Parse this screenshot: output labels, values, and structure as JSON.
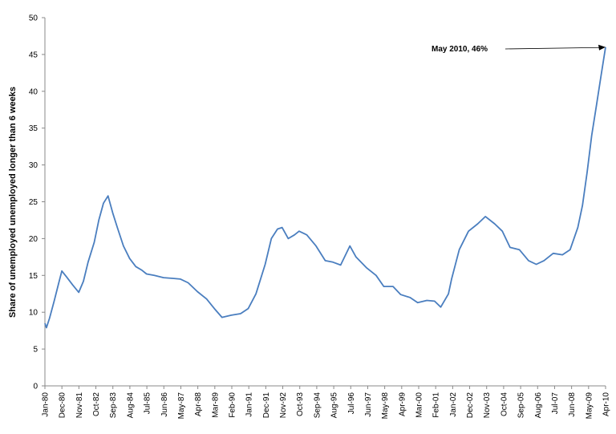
{
  "chart_data": {
    "type": "line",
    "ylabel": "Share of unemployed unemployed longer than 6 weeks",
    "xlabel": "",
    "ylim": [
      0,
      50
    ],
    "yticks": [
      "0",
      "5",
      "10",
      "15",
      "20",
      "25",
      "30",
      "35",
      "40",
      "45",
      "50"
    ],
    "xticks": [
      "Jan-80",
      "Dec-80",
      "Nov-81",
      "Oct-82",
      "Sep-83",
      "Aug-84",
      "Jul-85",
      "Jun-86",
      "May-87",
      "Apr-88",
      "Mar-89",
      "Feb-90",
      "Jan-91",
      "Dec-91",
      "Nov-92",
      "Oct-93",
      "Sep-94",
      "Aug-95",
      "Jul-96",
      "Jun-97",
      "May-98",
      "Apr-99",
      "Mar-00",
      "Feb-01",
      "Jan-02",
      "Dec-02",
      "Nov-03",
      "Oct-04",
      "Sep-05",
      "Aug-06",
      "Jul-07",
      "Jun-08",
      "May-09",
      "Apr-10"
    ],
    "grid": false,
    "line_color": "#4a7ebf",
    "annotation": {
      "text": "May 2010, 46%",
      "x": "May-10",
      "y": 46
    },
    "series": [
      {
        "points": [
          [
            "1980-01",
            8.5
          ],
          [
            "1980-02",
            7.9
          ],
          [
            "1980-04",
            9.2
          ],
          [
            "1980-07",
            11.5
          ],
          [
            "1980-10",
            14.0
          ],
          [
            "1980-12",
            15.6
          ],
          [
            "1981-03",
            14.8
          ],
          [
            "1981-07",
            13.7
          ],
          [
            "1981-11",
            12.7
          ],
          [
            "1982-02",
            14.2
          ],
          [
            "1982-05",
            16.8
          ],
          [
            "1982-09",
            19.5
          ],
          [
            "1982-12",
            22.5
          ],
          [
            "1983-03",
            24.8
          ],
          [
            "1983-06",
            25.8
          ],
          [
            "1983-09",
            23.5
          ],
          [
            "1983-12",
            21.5
          ],
          [
            "1984-04",
            19.0
          ],
          [
            "1984-08",
            17.3
          ],
          [
            "1984-12",
            16.2
          ],
          [
            "1985-04",
            15.7
          ],
          [
            "1985-07",
            15.2
          ],
          [
            "1985-12",
            15.0
          ],
          [
            "1986-06",
            14.7
          ],
          [
            "1986-12",
            14.6
          ],
          [
            "1987-05",
            14.5
          ],
          [
            "1987-10",
            14.0
          ],
          [
            "1988-04",
            12.8
          ],
          [
            "1988-10",
            11.8
          ],
          [
            "1989-03",
            10.5
          ],
          [
            "1989-08",
            9.3
          ],
          [
            "1990-02",
            9.6
          ],
          [
            "1990-08",
            9.8
          ],
          [
            "1991-01",
            10.5
          ],
          [
            "1991-06",
            12.5
          ],
          [
            "1991-12",
            16.5
          ],
          [
            "1992-04",
            20.0
          ],
          [
            "1992-08",
            21.3
          ],
          [
            "1992-11",
            21.5
          ],
          [
            "1993-03",
            20.0
          ],
          [
            "1993-07",
            20.5
          ],
          [
            "1993-10",
            21.0
          ],
          [
            "1994-03",
            20.5
          ],
          [
            "1994-09",
            19.0
          ],
          [
            "1995-03",
            17.0
          ],
          [
            "1995-08",
            16.8
          ],
          [
            "1996-01",
            16.4
          ],
          [
            "1996-07",
            19.0
          ],
          [
            "1996-11",
            17.5
          ],
          [
            "1997-06",
            16.0
          ],
          [
            "1997-12",
            15.0
          ],
          [
            "1998-05",
            13.5
          ],
          [
            "1998-11",
            13.5
          ],
          [
            "1999-04",
            12.4
          ],
          [
            "1999-10",
            12.0
          ],
          [
            "2000-03",
            11.3
          ],
          [
            "2000-09",
            11.6
          ],
          [
            "2001-02",
            11.5
          ],
          [
            "2001-06",
            10.7
          ],
          [
            "2001-11",
            12.5
          ],
          [
            "2002-01",
            14.5
          ],
          [
            "2002-06",
            18.5
          ],
          [
            "2002-12",
            21.0
          ],
          [
            "2003-06",
            22.0
          ],
          [
            "2003-11",
            23.0
          ],
          [
            "2004-05",
            22.0
          ],
          [
            "2004-10",
            21.0
          ],
          [
            "2005-03",
            18.8
          ],
          [
            "2005-09",
            18.5
          ],
          [
            "2006-03",
            17.0
          ],
          [
            "2006-08",
            16.5
          ],
          [
            "2007-01",
            17.0
          ],
          [
            "2007-07",
            18.0
          ],
          [
            "2008-01",
            17.8
          ],
          [
            "2008-06",
            18.5
          ],
          [
            "2008-11",
            21.5
          ],
          [
            "2009-02",
            24.5
          ],
          [
            "2009-05",
            29.0
          ],
          [
            "2009-08",
            34.0
          ],
          [
            "2009-11",
            38.0
          ],
          [
            "2010-02",
            42.0
          ],
          [
            "2010-05",
            46.0
          ]
        ]
      }
    ]
  }
}
